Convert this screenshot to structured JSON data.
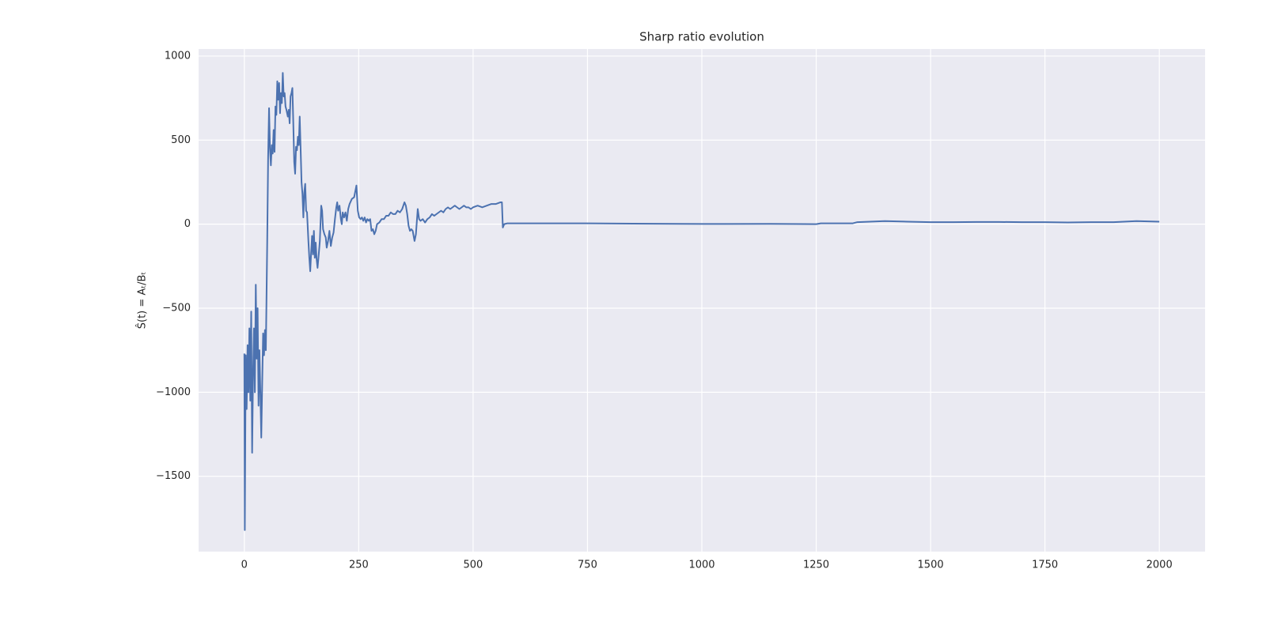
{
  "chart_data": {
    "type": "line",
    "title": "Sharp ratio evolution",
    "y_label": "Ŝ(t) = Aₜ/Bₜ",
    "color": "#4c72b0",
    "grid": true,
    "xlim": [
      -100,
      2100
    ],
    "ylim": [
      -1948,
      1042
    ],
    "xticks": [
      0,
      250,
      500,
      750,
      1000,
      1250,
      1500,
      1750,
      2000
    ],
    "yticks": [
      {
        "value": -1500,
        "label": "−1500"
      },
      {
        "value": -1000,
        "label": "−1000"
      },
      {
        "value": -500,
        "label": "−500"
      },
      0,
      500,
      1000
    ],
    "x": [
      0,
      1,
      3,
      5,
      7,
      9,
      11,
      13,
      15,
      17,
      19,
      21,
      23,
      25,
      27,
      29,
      31,
      33,
      35,
      37,
      39,
      41,
      43,
      45,
      47,
      50,
      52,
      54,
      56,
      58,
      60,
      62,
      64,
      66,
      68,
      70,
      72,
      74,
      76,
      78,
      80,
      82,
      84,
      86,
      88,
      90,
      92,
      95,
      97,
      99,
      101,
      103,
      105,
      107,
      109,
      111,
      113,
      115,
      117,
      119,
      121,
      123,
      125,
      127,
      129,
      131,
      133,
      135,
      137,
      140,
      142,
      144,
      146,
      148,
      150,
      152,
      154,
      156,
      158,
      160,
      162,
      165,
      168,
      170,
      172,
      175,
      178,
      180,
      183,
      186,
      189,
      192,
      195,
      198,
      201,
      203,
      205,
      208,
      211,
      213,
      215,
      218,
      221,
      224,
      227,
      230,
      235,
      240,
      245,
      248,
      251,
      254,
      257,
      260,
      263,
      266,
      269,
      272,
      275,
      278,
      281,
      284,
      287,
      290,
      295,
      300,
      305,
      310,
      315,
      320,
      325,
      330,
      335,
      340,
      345,
      350,
      353,
      356,
      359,
      362,
      365,
      368,
      372,
      375,
      379,
      382,
      385,
      390,
      395,
      400,
      405,
      410,
      415,
      420,
      425,
      430,
      435,
      440,
      445,
      450,
      455,
      460,
      465,
      470,
      475,
      480,
      485,
      490,
      495,
      500,
      510,
      520,
      530,
      540,
      550,
      560,
      563,
      565,
      568,
      575,
      650,
      750,
      850,
      950,
      1050,
      1150,
      1250,
      1260,
      1330,
      1340,
      1400,
      1450,
      1500,
      1550,
      1600,
      1650,
      1700,
      1750,
      1800,
      1850,
      1900,
      1950,
      2000
    ],
    "values": [
      -770,
      -1820,
      -780,
      -1100,
      -720,
      -1000,
      -620,
      -1050,
      -520,
      -1360,
      -900,
      -620,
      -1000,
      -360,
      -800,
      -500,
      -1080,
      -750,
      -1000,
      -1270,
      -950,
      -650,
      -780,
      -630,
      -750,
      -100,
      400,
      690,
      450,
      350,
      470,
      420,
      560,
      430,
      700,
      650,
      850,
      740,
      840,
      660,
      780,
      720,
      900,
      760,
      780,
      700,
      680,
      640,
      680,
      600,
      760,
      780,
      810,
      600,
      370,
      300,
      460,
      440,
      520,
      470,
      640,
      450,
      250,
      180,
      40,
      190,
      240,
      80,
      70,
      -100,
      -200,
      -280,
      -170,
      -70,
      -180,
      -40,
      -200,
      -110,
      -210,
      -260,
      -200,
      -100,
      110,
      80,
      -30,
      -60,
      -80,
      -140,
      -100,
      -40,
      -130,
      -80,
      -50,
      30,
      100,
      130,
      80,
      110,
      30,
      0,
      70,
      40,
      70,
      20,
      90,
      120,
      150,
      160,
      230,
      80,
      40,
      30,
      40,
      20,
      40,
      10,
      30,
      20,
      30,
      -40,
      -30,
      -60,
      -40,
      0,
      10,
      30,
      30,
      50,
      50,
      70,
      60,
      60,
      80,
      70,
      90,
      130,
      110,
      60,
      -10,
      -40,
      -30,
      -40,
      -100,
      -60,
      90,
      30,
      20,
      30,
      10,
      30,
      40,
      60,
      50,
      60,
      70,
      80,
      70,
      90,
      100,
      90,
      100,
      110,
      100,
      90,
      100,
      110,
      100,
      100,
      90,
      100,
      110,
      100,
      110,
      120,
      120,
      130,
      130,
      -20,
      0,
      5,
      5,
      5,
      3,
      2,
      1,
      2,
      0,
      5,
      5,
      12,
      18,
      15,
      12,
      12,
      13,
      13,
      12,
      12,
      10,
      12,
      12,
      18,
      15
    ]
  }
}
